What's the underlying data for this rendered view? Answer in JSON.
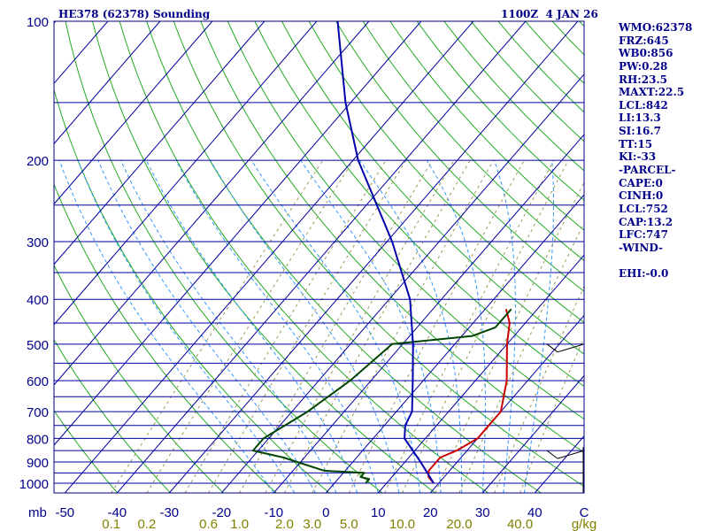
{
  "header": {
    "station_title": "HE378 (62378) Sounding",
    "time_date": "1100Z  4 JAN 26"
  },
  "indices": [
    "WMO:62378",
    "FRZ:645",
    "WB0:856",
    "PW:0.28",
    "RH:23.5",
    "MAXT:22.5",
    "LCL:842",
    "LI:13.3",
    "SI:16.7",
    "TT:15",
    "KI:-33",
    "-PARCEL-",
    "CAPE:0",
    "CINH:0",
    "LCL:752",
    "CAP:13.2",
    "LFC:747",
    "-WIND-",
    "",
    "EHI:-0.0"
  ],
  "chart_data": {
    "type": "line",
    "title": "HE378 (62378) Sounding",
    "y_axis": {
      "unit_label": "mb",
      "scale": "log",
      "range": [
        1050,
        100
      ],
      "tick_labels": [
        "100",
        "200",
        "300",
        "400",
        "500",
        "600",
        "700",
        "800",
        "900",
        "1000"
      ],
      "isobars_drawn": [
        100,
        150,
        200,
        250,
        300,
        350,
        400,
        450,
        500,
        550,
        600,
        650,
        700,
        750,
        800,
        850,
        900,
        950,
        1000,
        1050
      ]
    },
    "x_axis": {
      "unit_label": "C",
      "tick_labels": [
        "-50",
        "-40",
        "-30",
        "-20",
        "-10",
        "0",
        "10",
        "20",
        "30",
        "40"
      ],
      "range": [
        -50,
        50
      ]
    },
    "mixing_ratio_axis": {
      "unit_label": "g/kg",
      "tick_labels": [
        "0.1",
        "0.2",
        "0.6",
        "1.0",
        "2.0",
        "3.0",
        "5.0",
        "10.0",
        "20.0",
        "40.0"
      ]
    },
    "series": [
      {
        "color": "#cc0000",
        "points": [
          [
            1000,
            19
          ],
          [
            970,
            17
          ],
          [
            940,
            16
          ],
          [
            880,
            16
          ],
          [
            850,
            18
          ],
          [
            800,
            20
          ],
          [
            750,
            20
          ],
          [
            700,
            20
          ],
          [
            600,
            16
          ],
          [
            500,
            10
          ],
          [
            450,
            7
          ],
          [
            420,
            4
          ]
        ]
      },
      {
        "color": "#004400",
        "points": [
          [
            1000,
            6
          ],
          [
            980,
            6
          ],
          [
            970,
            4
          ],
          [
            950,
            4
          ],
          [
            940,
            -4
          ],
          [
            880,
            -14
          ],
          [
            850,
            -21
          ],
          [
            800,
            -21
          ],
          [
            700,
            -17
          ],
          [
            600,
            -14
          ],
          [
            500,
            -12
          ],
          [
            480,
            2
          ],
          [
            460,
            5
          ],
          [
            420,
            5
          ]
        ]
      },
      {
        "color": "#0000aa",
        "points": [
          [
            1000,
            19
          ],
          [
            900,
            13
          ],
          [
            800,
            6
          ],
          [
            750,
            4
          ],
          [
            700,
            3
          ],
          [
            600,
            -2
          ],
          [
            500,
            -8
          ],
          [
            400,
            -16
          ],
          [
            300,
            -29
          ],
          [
            200,
            -49
          ],
          [
            150,
            -61
          ],
          [
            100,
            -76
          ]
        ]
      }
    ],
    "wind_barbs": [
      {
        "pressure": 500
      },
      {
        "pressure": 850
      }
    ],
    "grid": true
  }
}
